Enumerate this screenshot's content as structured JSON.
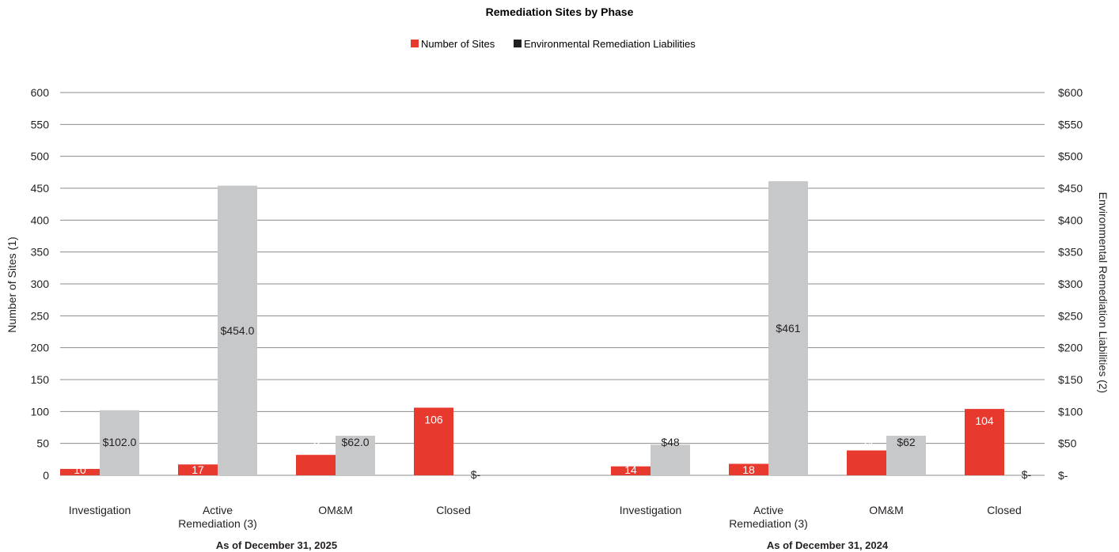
{
  "chart_data": {
    "type": "bar",
    "title": "Remediation Sites by Phase",
    "legend": [
      "Number of Sites",
      "Environmental Remediation Liabilities"
    ],
    "ylabel_left": "Number of Sites (1)",
    "ylabel_right": "Environmental Remediation Liabilities (2)",
    "ylim_left": [
      0,
      600
    ],
    "ylim_right": [
      0,
      600
    ],
    "left_ticks": [
      "0",
      "50",
      "100",
      "150",
      "200",
      "250",
      "300",
      "350",
      "400",
      "450",
      "500",
      "550",
      "600"
    ],
    "right_ticks": [
      "$-",
      "$50",
      "$100",
      "$150",
      "$200",
      "$250",
      "$300",
      "$350",
      "$400",
      "$450",
      "$500",
      "$550",
      "$600"
    ],
    "colors": {
      "sites": "#e8392f",
      "liabilities": "#c7c8ca",
      "grid": "#8c8c8c"
    },
    "legend_placement": "top-center",
    "grid": true,
    "groups": [
      {
        "label": "As of December 31, 2025",
        "categories": [
          {
            "label": [
              "Investigation"
            ],
            "sites": 10,
            "sites_label": "10",
            "liabilities": 102,
            "liabilities_label": "$102.0"
          },
          {
            "label": [
              "Active",
              "Remediation (3)"
            ],
            "sites": 17,
            "sites_label": "17",
            "liabilities": 454,
            "liabilities_label": "$454.0"
          },
          {
            "label": [
              "OM&M"
            ],
            "sites": 32,
            "sites_label": "32",
            "liabilities": 62,
            "liabilities_label": "$62.0"
          },
          {
            "label": [
              "Closed"
            ],
            "sites": 106,
            "sites_label": "106",
            "liabilities": 0,
            "liabilities_label": "$-"
          }
        ]
      },
      {
        "label": "As of December 31, 2024",
        "categories": [
          {
            "label": [
              "Investigation"
            ],
            "sites": 14,
            "sites_label": "14",
            "liabilities": 48,
            "liabilities_label": "$48"
          },
          {
            "label": [
              "Active",
              "Remediation (3)"
            ],
            "sites": 18,
            "sites_label": "18",
            "liabilities": 461,
            "liabilities_label": "$461"
          },
          {
            "label": [
              "OM&M"
            ],
            "sites": 39,
            "sites_label": "39",
            "liabilities": 62,
            "liabilities_label": "$62"
          },
          {
            "label": [
              "Closed"
            ],
            "sites": 104,
            "sites_label": "104",
            "liabilities": 0,
            "liabilities_label": "$-"
          }
        ]
      }
    ]
  }
}
